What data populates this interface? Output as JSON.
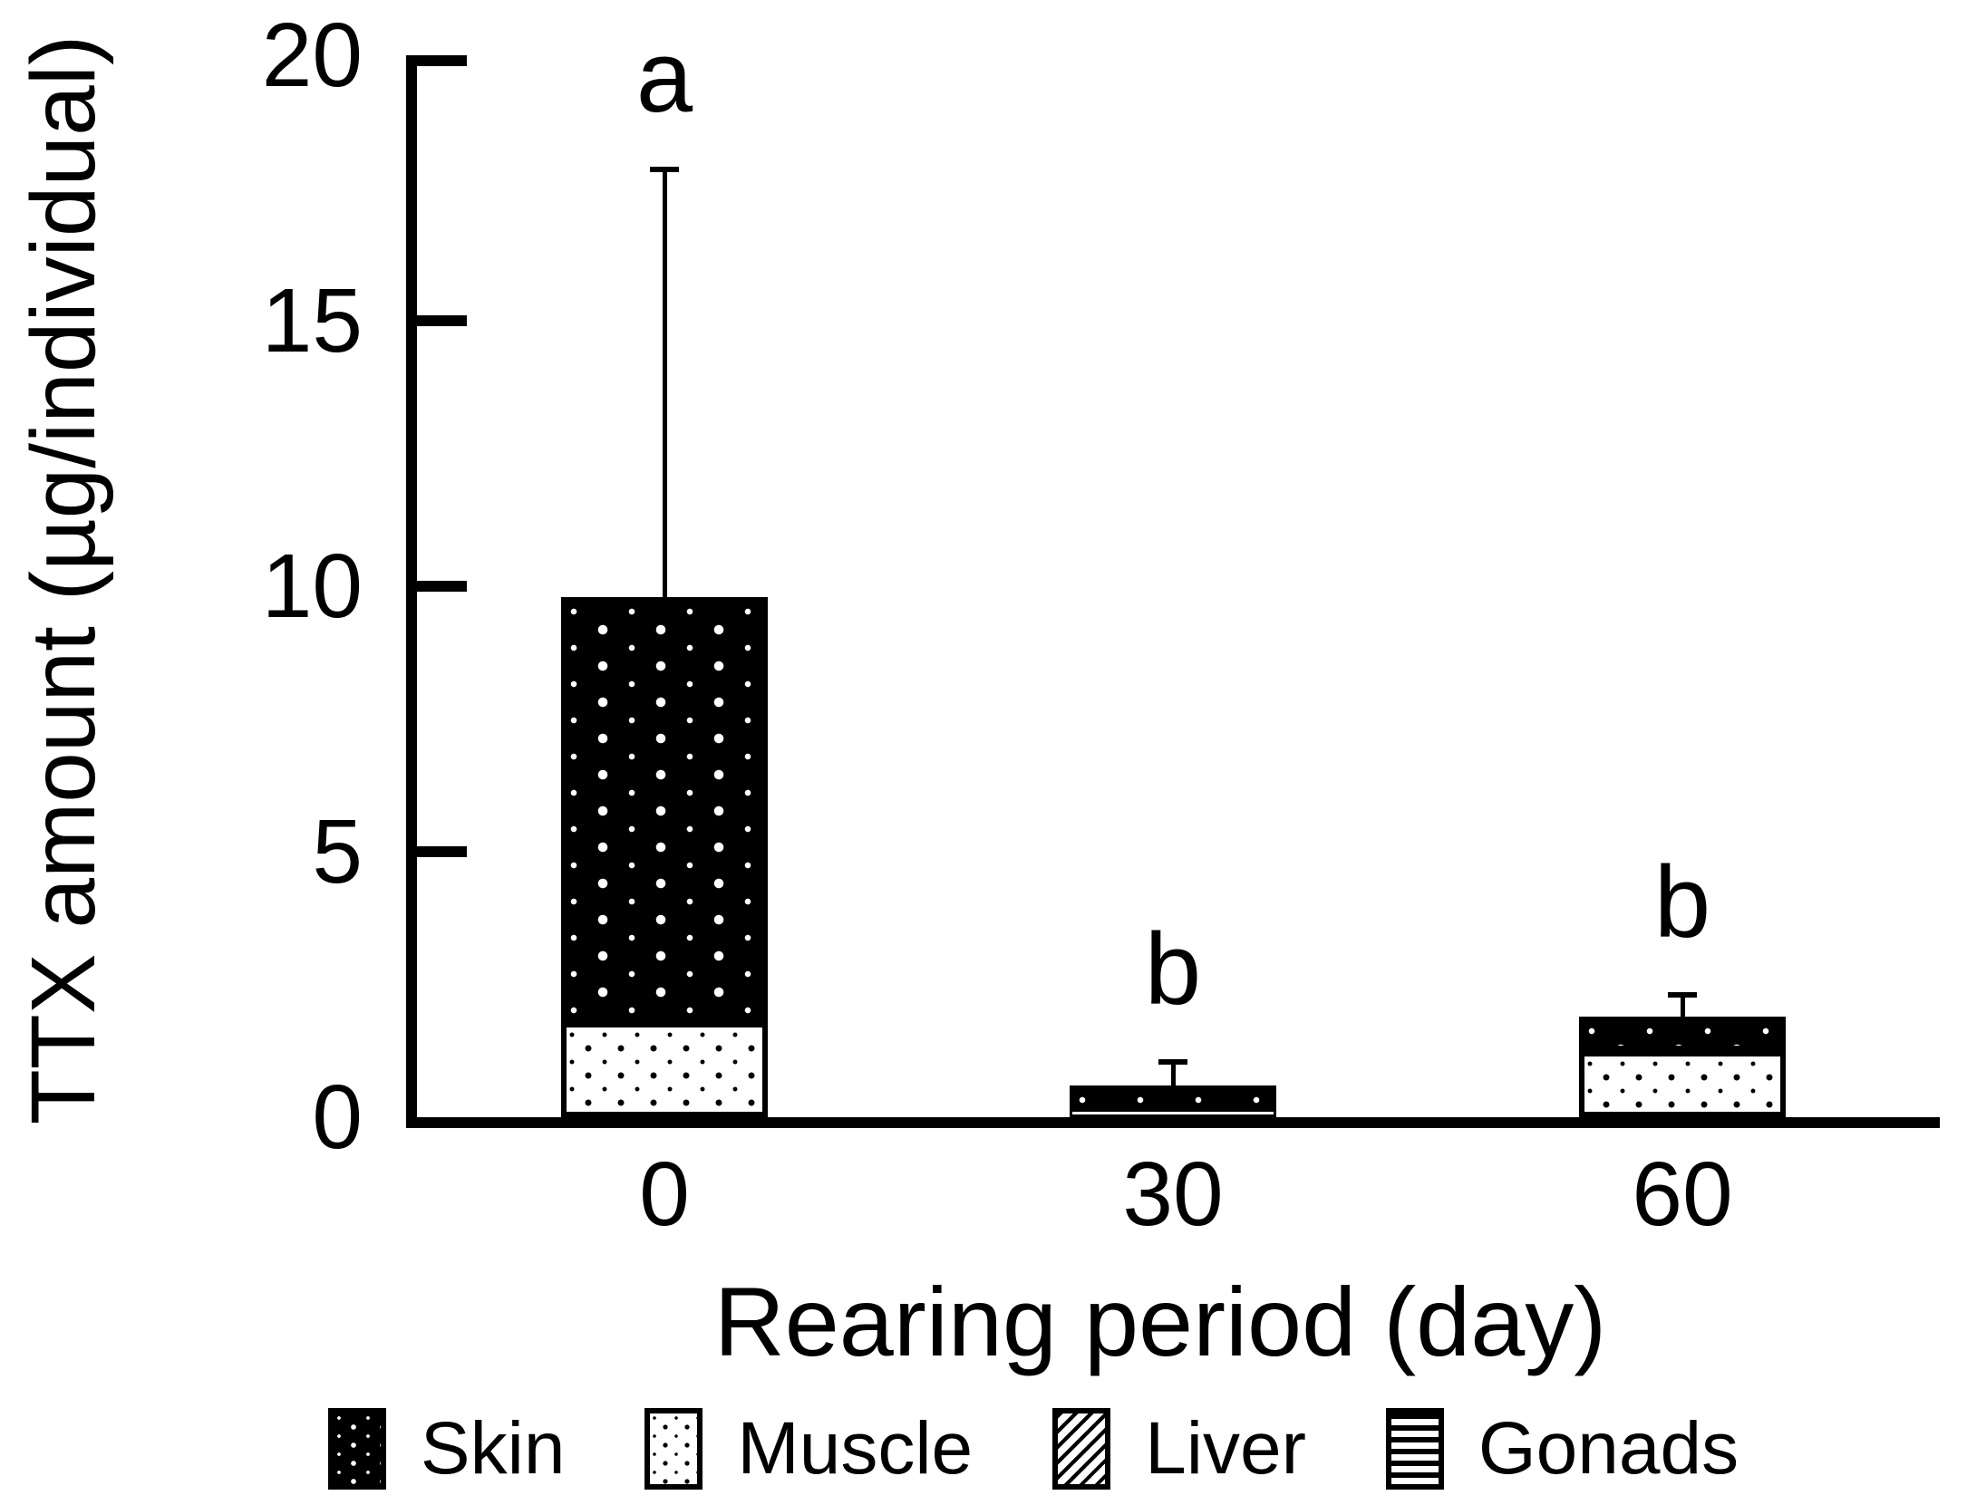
{
  "chart_data": {
    "type": "bar",
    "subtype": "stacked-vertical",
    "title": "",
    "xlabel": "Rearing period (day)",
    "ylabel": "TTX amount (µg/individual)",
    "ylim": [
      0,
      20
    ],
    "yticks": [
      0,
      5,
      10,
      15,
      20
    ],
    "categories": [
      "0",
      "30",
      "60"
    ],
    "series": [
      {
        "name": "Skin",
        "values": [
          8.0,
          0.45,
          0.65
        ]
      },
      {
        "name": "Muscle",
        "values": [
          1.8,
          0.15,
          1.25
        ]
      },
      {
        "name": "Liver",
        "values": [
          0,
          0,
          0
        ]
      },
      {
        "name": "Gonads",
        "values": [
          0,
          0,
          0
        ]
      }
    ],
    "stack_order": [
      "Muscle",
      "Skin",
      "Liver",
      "Gonads"
    ],
    "bar_totals": [
      9.8,
      0.6,
      1.9
    ],
    "error_bar_tops": [
      17.9,
      1.1,
      2.35
    ],
    "significance_letters": [
      "a",
      "b",
      "b"
    ],
    "legend": [
      {
        "label": "Skin",
        "pattern": "white-dots-on-black"
      },
      {
        "label": "Muscle",
        "pattern": "black-dots-on-white"
      },
      {
        "label": "Liver",
        "pattern": "diagonal-hatch"
      },
      {
        "label": "Gonads",
        "pattern": "horizontal-stripes"
      }
    ],
    "legend_position": "bottom",
    "grid": false,
    "colors": {
      "foreground": "#000000",
      "background": "#ffffff"
    }
  }
}
